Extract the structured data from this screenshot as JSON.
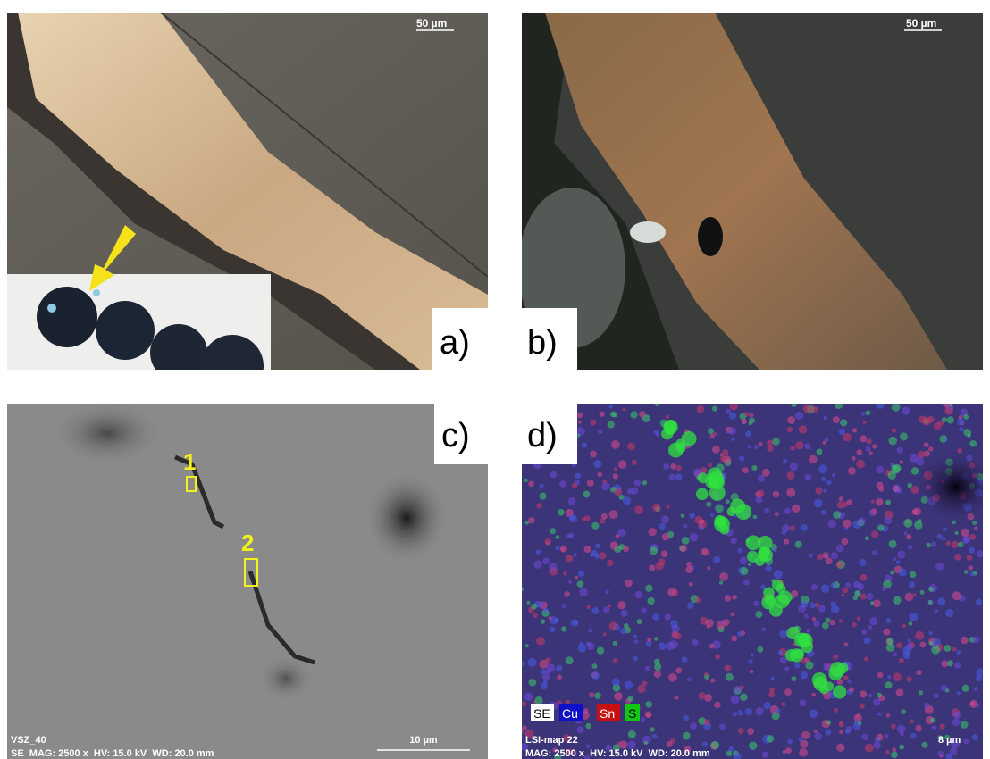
{
  "panels": [
    {
      "label": "a)",
      "scale_bar": "50 µm"
    },
    {
      "label": "b)",
      "scale_bar": "50 µm"
    },
    {
      "label": "c)",
      "markers": [
        "1",
        "2"
      ],
      "info": [
        "VSZ_40",
        "SE  MAG: 2500 x  HV: 15.0 kV  WD: 20.0 mm"
      ],
      "scale_bar": "10 µm"
    },
    {
      "label": "d)",
      "legend": [
        "SE",
        "Cu",
        "Sn",
        "S"
      ],
      "info": [
        "LSI-map 22",
        "MAG: 2500 x  HV: 15.0 kV  WD: 20.0 mm"
      ],
      "scale_bar": "8 µm"
    }
  ]
}
